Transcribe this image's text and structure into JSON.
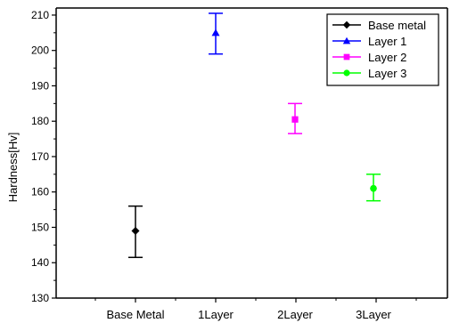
{
  "chart_data": {
    "type": "scatter",
    "title": "",
    "xlabel": "",
    "ylabel": "Hardness[Hv]",
    "categories": [
      "Base Metal",
      "1Layer",
      "2Layer",
      "3Layer"
    ],
    "ylim": [
      130,
      212
    ],
    "yticks": [
      130,
      140,
      150,
      160,
      170,
      180,
      190,
      200,
      210
    ],
    "grid": false,
    "legend_position": "top-right",
    "series": [
      {
        "name": "Base metal",
        "category": "Base Metal",
        "marker": "diamond",
        "color": "#000000",
        "value": 149,
        "error_low": 141.5,
        "error_high": 156
      },
      {
        "name": "Layer 1",
        "category": "1Layer",
        "marker": "triangle",
        "color": "#0000ff",
        "value": 205,
        "error_low": 199,
        "error_high": 210.5
      },
      {
        "name": "Layer 2",
        "category": "2Layer",
        "marker": "square",
        "color": "#ff00ff",
        "value": 180.5,
        "error_low": 176.5,
        "error_high": 185
      },
      {
        "name": "Layer 3",
        "category": "3Layer",
        "marker": "circle",
        "color": "#00ff00",
        "value": 161,
        "error_low": 157.5,
        "error_high": 165
      }
    ]
  }
}
